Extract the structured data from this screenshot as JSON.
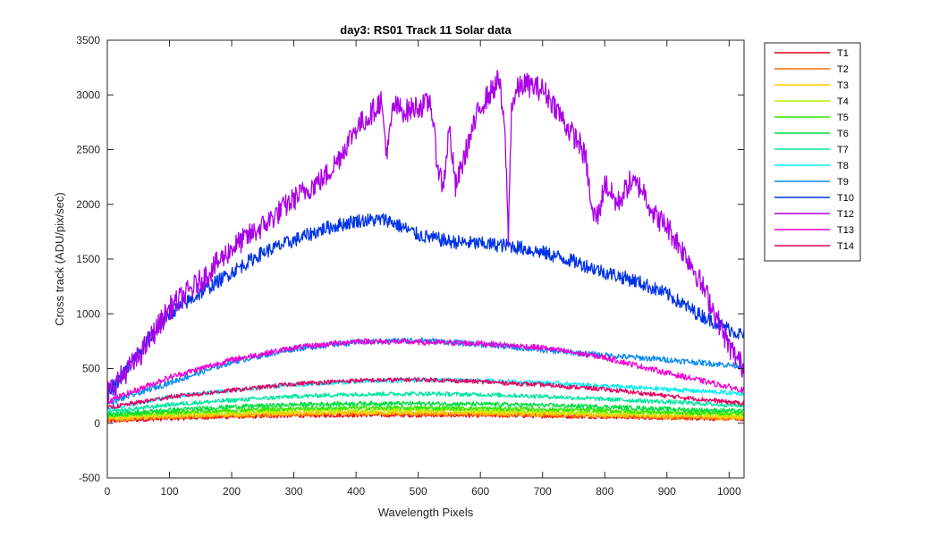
{
  "chart_data": {
    "type": "line",
    "title": "day3: RS01  Track 11 Solar data",
    "xlabel": "Wavelength Pixels",
    "ylabel": "Cross track (ADU/pix/sec)",
    "xlim": [
      0,
      1024
    ],
    "ylim": [
      -500,
      3500
    ],
    "xticks": [
      "0",
      "100",
      "200",
      "300",
      "400",
      "500",
      "600",
      "700",
      "800",
      "900",
      "1000"
    ],
    "yticks": [
      "-500",
      "0",
      "500",
      "1000",
      "1500",
      "2000",
      "2500",
      "3000",
      "3500"
    ],
    "grid": false,
    "legend_position": "outside-right",
    "series": [
      {
        "name": "T1",
        "color": "#e6001a",
        "x": [
          0,
          100,
          200,
          300,
          400,
          500,
          600,
          700,
          800,
          900,
          1024
        ],
        "y": [
          20,
          45,
          60,
          70,
          75,
          75,
          72,
          68,
          60,
          50,
          40
        ]
      },
      {
        "name": "T2",
        "color": "#ff6a00",
        "x": [
          0,
          100,
          200,
          300,
          400,
          500,
          600,
          700,
          800,
          900,
          1024
        ],
        "y": [
          30,
          55,
          70,
          80,
          85,
          85,
          82,
          75,
          65,
          55,
          45
        ]
      },
      {
        "name": "T3",
        "color": "#ffcc00",
        "x": [
          0,
          100,
          200,
          300,
          400,
          500,
          600,
          700,
          800,
          900,
          1024
        ],
        "y": [
          40,
          65,
          80,
          90,
          95,
          95,
          92,
          85,
          75,
          65,
          55
        ]
      },
      {
        "name": "T4",
        "color": "#b4f000",
        "x": [
          0,
          100,
          200,
          300,
          400,
          500,
          600,
          700,
          800,
          900,
          1024
        ],
        "y": [
          60,
          85,
          100,
          115,
          120,
          120,
          115,
          108,
          98,
          88,
          75
        ]
      },
      {
        "name": "T5",
        "color": "#33e600",
        "x": [
          0,
          100,
          200,
          300,
          400,
          500,
          600,
          700,
          800,
          900,
          1024
        ],
        "y": [
          70,
          100,
          120,
          135,
          140,
          140,
          135,
          128,
          115,
          100,
          88
        ]
      },
      {
        "name": "T6",
        "color": "#00dc40",
        "x": [
          0,
          100,
          200,
          300,
          400,
          500,
          600,
          700,
          800,
          900,
          1024
        ],
        "y": [
          80,
          120,
          150,
          170,
          180,
          180,
          175,
          165,
          150,
          130,
          110
        ]
      },
      {
        "name": "T7",
        "color": "#00e6a0",
        "x": [
          0,
          100,
          200,
          300,
          400,
          500,
          600,
          700,
          800,
          900,
          1024
        ],
        "y": [
          100,
          170,
          210,
          245,
          265,
          270,
          262,
          245,
          220,
          195,
          160
        ]
      },
      {
        "name": "T8",
        "color": "#00f0f0",
        "x": [
          0,
          100,
          200,
          300,
          400,
          500,
          600,
          700,
          800,
          900,
          1024
        ],
        "y": [
          130,
          240,
          300,
          350,
          380,
          395,
          390,
          370,
          340,
          310,
          270
        ]
      },
      {
        "name": "T9",
        "color": "#0a8cf0",
        "x": [
          0,
          100,
          200,
          300,
          400,
          500,
          600,
          700,
          800,
          900,
          1024
        ],
        "y": [
          180,
          370,
          560,
          680,
          740,
          760,
          720,
          670,
          620,
          580,
          520
        ]
      },
      {
        "name": "T10",
        "color": "#0033e6",
        "x": [
          0,
          50,
          100,
          150,
          200,
          250,
          300,
          350,
          400,
          450,
          500,
          550,
          600,
          650,
          700,
          750,
          800,
          850,
          900,
          950,
          1000,
          1024
        ],
        "y": [
          250,
          640,
          1000,
          1190,
          1380,
          1560,
          1670,
          1780,
          1850,
          1860,
          1720,
          1660,
          1640,
          1620,
          1560,
          1480,
          1380,
          1300,
          1180,
          1000,
          860,
          800
        ]
      },
      {
        "name": "T12",
        "color": "#aa00e6",
        "x": [
          0,
          50,
          100,
          150,
          200,
          250,
          300,
          350,
          370,
          400,
          420,
          440,
          450,
          460,
          480,
          500,
          510,
          520,
          530,
          540,
          550,
          560,
          580,
          600,
          620,
          630,
          640,
          645,
          650,
          660,
          670,
          700,
          720,
          740,
          760,
          770,
          780,
          790,
          800,
          820,
          840,
          860,
          880,
          900,
          940,
          970,
          1000,
          1024
        ],
        "y": [
          280,
          600,
          1050,
          1300,
          1600,
          1800,
          2050,
          2250,
          2400,
          2700,
          2800,
          2950,
          2450,
          2900,
          2850,
          2900,
          2900,
          2950,
          2400,
          2150,
          2700,
          2150,
          2550,
          2900,
          3050,
          3150,
          2600,
          1700,
          2900,
          3050,
          3100,
          3050,
          2900,
          2700,
          2550,
          2400,
          1900,
          1900,
          2200,
          2000,
          2200,
          2150,
          1900,
          1800,
          1450,
          1100,
          700,
          500
        ]
      },
      {
        "name": "T13",
        "color": "#f000d2",
        "x": [
          0,
          100,
          200,
          300,
          400,
          500,
          600,
          700,
          800,
          900,
          1024
        ],
        "y": [
          200,
          420,
          580,
          690,
          750,
          740,
          730,
          690,
          600,
          460,
          300
        ]
      },
      {
        "name": "T14",
        "color": "#e60064",
        "x": [
          0,
          100,
          200,
          300,
          400,
          500,
          600,
          700,
          800,
          900,
          1024
        ],
        "y": [
          140,
          240,
          300,
          360,
          390,
          400,
          380,
          350,
          310,
          250,
          180
        ]
      }
    ]
  }
}
